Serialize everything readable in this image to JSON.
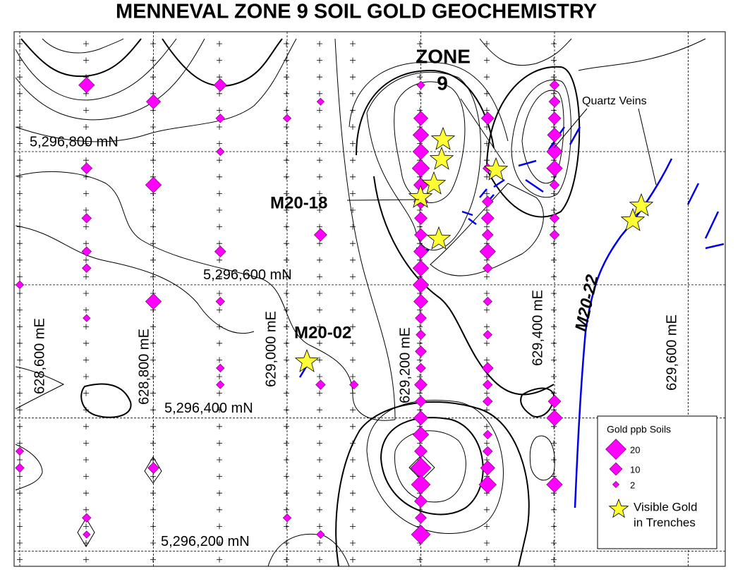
{
  "title": "MENNEVAL ZONE 9 SOIL GOLD GEOCHEMISTRY",
  "map": {
    "eastings": [
      {
        "value": 628600,
        "label": "628,600 mE"
      },
      {
        "value": 628800,
        "label": "628,800 mE"
      },
      {
        "value": 629000,
        "label": "629,000 mE"
      },
      {
        "value": 629200,
        "label": "629,200 mE"
      },
      {
        "value": 629400,
        "label": "629,400 mE"
      },
      {
        "value": 629600,
        "label": "629,600 mE"
      }
    ],
    "northings": [
      {
        "value": 5296800,
        "label": "5,296,800 mN"
      },
      {
        "value": 5296600,
        "label": "5,296,600 mN"
      },
      {
        "value": 5296400,
        "label": "5,296,400 mN"
      },
      {
        "value": 5296200,
        "label": "5,296,200 mN"
      }
    ],
    "samples": [
      {
        "e": 628700,
        "n": 5296900,
        "ppb": 14
      },
      {
        "e": 628700,
        "n": 5296775,
        "ppb": 8
      },
      {
        "e": 628700,
        "n": 5296700,
        "ppb": 6
      },
      {
        "e": 628700,
        "n": 5296650,
        "ppb": 6
      },
      {
        "e": 628700,
        "n": 5296625,
        "ppb": 5
      },
      {
        "e": 628700,
        "n": 5296550,
        "ppb": 3
      },
      {
        "e": 628700,
        "n": 5296250,
        "ppb": 5
      },
      {
        "e": 628700,
        "n": 5296225,
        "ppb": 3
      },
      {
        "e": 628600,
        "n": 5296600,
        "ppb": 4
      },
      {
        "e": 628600,
        "n": 5296350,
        "ppb": 4
      },
      {
        "e": 628600,
        "n": 5296325,
        "ppb": 5
      },
      {
        "e": 628800,
        "n": 5296875,
        "ppb": 12
      },
      {
        "e": 628800,
        "n": 5296750,
        "ppb": 14
      },
      {
        "e": 628800,
        "n": 5296575,
        "ppb": 14
      },
      {
        "e": 628800,
        "n": 5296325,
        "ppb": 8
      },
      {
        "e": 628900,
        "n": 5296900,
        "ppb": 10
      },
      {
        "e": 628900,
        "n": 5296850,
        "ppb": 5
      },
      {
        "e": 628900,
        "n": 5296800,
        "ppb": 4
      },
      {
        "e": 628900,
        "n": 5296650,
        "ppb": 8
      },
      {
        "e": 628900,
        "n": 5296575,
        "ppb": 5
      },
      {
        "e": 628900,
        "n": 5296475,
        "ppb": 4
      },
      {
        "e": 628900,
        "n": 5296450,
        "ppb": 4
      },
      {
        "e": 629000,
        "n": 5296850,
        "ppb": 4
      },
      {
        "e": 629000,
        "n": 5296250,
        "ppb": 4
      },
      {
        "e": 629050,
        "n": 5296875,
        "ppb": 3
      },
      {
        "e": 629050,
        "n": 5296675,
        "ppb": 10
      },
      {
        "e": 629050,
        "n": 5296450,
        "ppb": 6
      },
      {
        "e": 629050,
        "n": 5296225,
        "ppb": 4
      },
      {
        "e": 629100,
        "n": 5296450,
        "ppb": 5
      },
      {
        "e": 629200,
        "n": 5296900,
        "ppb": 4
      },
      {
        "e": 629200,
        "n": 5296850,
        "ppb": 12
      },
      {
        "e": 629200,
        "n": 5296825,
        "ppb": 14
      },
      {
        "e": 629200,
        "n": 5296800,
        "ppb": 14
      },
      {
        "e": 629200,
        "n": 5296775,
        "ppb": 16
      },
      {
        "e": 629200,
        "n": 5296750,
        "ppb": 12
      },
      {
        "e": 629200,
        "n": 5296725,
        "ppb": 12
      },
      {
        "e": 629200,
        "n": 5296700,
        "ppb": 10
      },
      {
        "e": 629200,
        "n": 5296675,
        "ppb": 10
      },
      {
        "e": 629200,
        "n": 5296650,
        "ppb": 12
      },
      {
        "e": 629200,
        "n": 5296625,
        "ppb": 14
      },
      {
        "e": 629200,
        "n": 5296600,
        "ppb": 14
      },
      {
        "e": 629200,
        "n": 5296575,
        "ppb": 12
      },
      {
        "e": 629200,
        "n": 5296550,
        "ppb": 8
      },
      {
        "e": 629200,
        "n": 5296525,
        "ppb": 6
      },
      {
        "e": 629200,
        "n": 5296500,
        "ppb": 8
      },
      {
        "e": 629200,
        "n": 5296475,
        "ppb": 6
      },
      {
        "e": 629200,
        "n": 5296450,
        "ppb": 10
      },
      {
        "e": 629200,
        "n": 5296425,
        "ppb": 8
      },
      {
        "e": 629200,
        "n": 5296400,
        "ppb": 12
      },
      {
        "e": 629200,
        "n": 5296375,
        "ppb": 14
      },
      {
        "e": 629200,
        "n": 5296350,
        "ppb": 10
      },
      {
        "e": 629200,
        "n": 5296325,
        "ppb": 20
      },
      {
        "e": 629200,
        "n": 5296300,
        "ppb": 18
      },
      {
        "e": 629200,
        "n": 5296275,
        "ppb": 10
      },
      {
        "e": 629200,
        "n": 5296250,
        "ppb": 8
      },
      {
        "e": 629200,
        "n": 5296225,
        "ppb": 18
      },
      {
        "e": 629300,
        "n": 5296850,
        "ppb": 10
      },
      {
        "e": 629300,
        "n": 5296775,
        "ppb": 6
      },
      {
        "e": 629300,
        "n": 5296725,
        "ppb": 8
      },
      {
        "e": 629300,
        "n": 5296700,
        "ppb": 10
      },
      {
        "e": 629300,
        "n": 5296675,
        "ppb": 8
      },
      {
        "e": 629300,
        "n": 5296650,
        "ppb": 14
      },
      {
        "e": 629300,
        "n": 5296625,
        "ppb": 6
      },
      {
        "e": 629300,
        "n": 5296575,
        "ppb": 5
      },
      {
        "e": 629300,
        "n": 5296525,
        "ppb": 5
      },
      {
        "e": 629300,
        "n": 5296475,
        "ppb": 8
      },
      {
        "e": 629300,
        "n": 5296450,
        "ppb": 6
      },
      {
        "e": 629300,
        "n": 5296425,
        "ppb": 6
      },
      {
        "e": 629300,
        "n": 5296375,
        "ppb": 5
      },
      {
        "e": 629300,
        "n": 5296350,
        "ppb": 6
      },
      {
        "e": 629300,
        "n": 5296325,
        "ppb": 12
      },
      {
        "e": 629300,
        "n": 5296300,
        "ppb": 16
      },
      {
        "e": 629400,
        "n": 5296900,
        "ppb": 6
      },
      {
        "e": 629400,
        "n": 5296875,
        "ppb": 8
      },
      {
        "e": 629400,
        "n": 5296850,
        "ppb": 10
      },
      {
        "e": 629400,
        "n": 5296825,
        "ppb": 12
      },
      {
        "e": 629400,
        "n": 5296800,
        "ppb": 14
      },
      {
        "e": 629400,
        "n": 5296775,
        "ppb": 14
      },
      {
        "e": 629400,
        "n": 5296750,
        "ppb": 6
      },
      {
        "e": 629400,
        "n": 5296700,
        "ppb": 6
      },
      {
        "e": 629400,
        "n": 5296675,
        "ppb": 6
      },
      {
        "e": 629400,
        "n": 5296425,
        "ppb": 10
      },
      {
        "e": 629400,
        "n": 5296400,
        "ppb": 14
      },
      {
        "e": 629400,
        "n": 5296300,
        "ppb": 14
      }
    ],
    "zone_label": [
      "ZONE",
      "9"
    ],
    "trench_labels": [
      "M20-18",
      "M20-02",
      "M20-22"
    ],
    "vein_label": "Quartz Veins"
  },
  "legend": {
    "title": "Gold ppb Soils",
    "sizes": [
      20,
      10,
      2
    ],
    "star_label": [
      "Visible Gold",
      "in Trenches"
    ]
  }
}
